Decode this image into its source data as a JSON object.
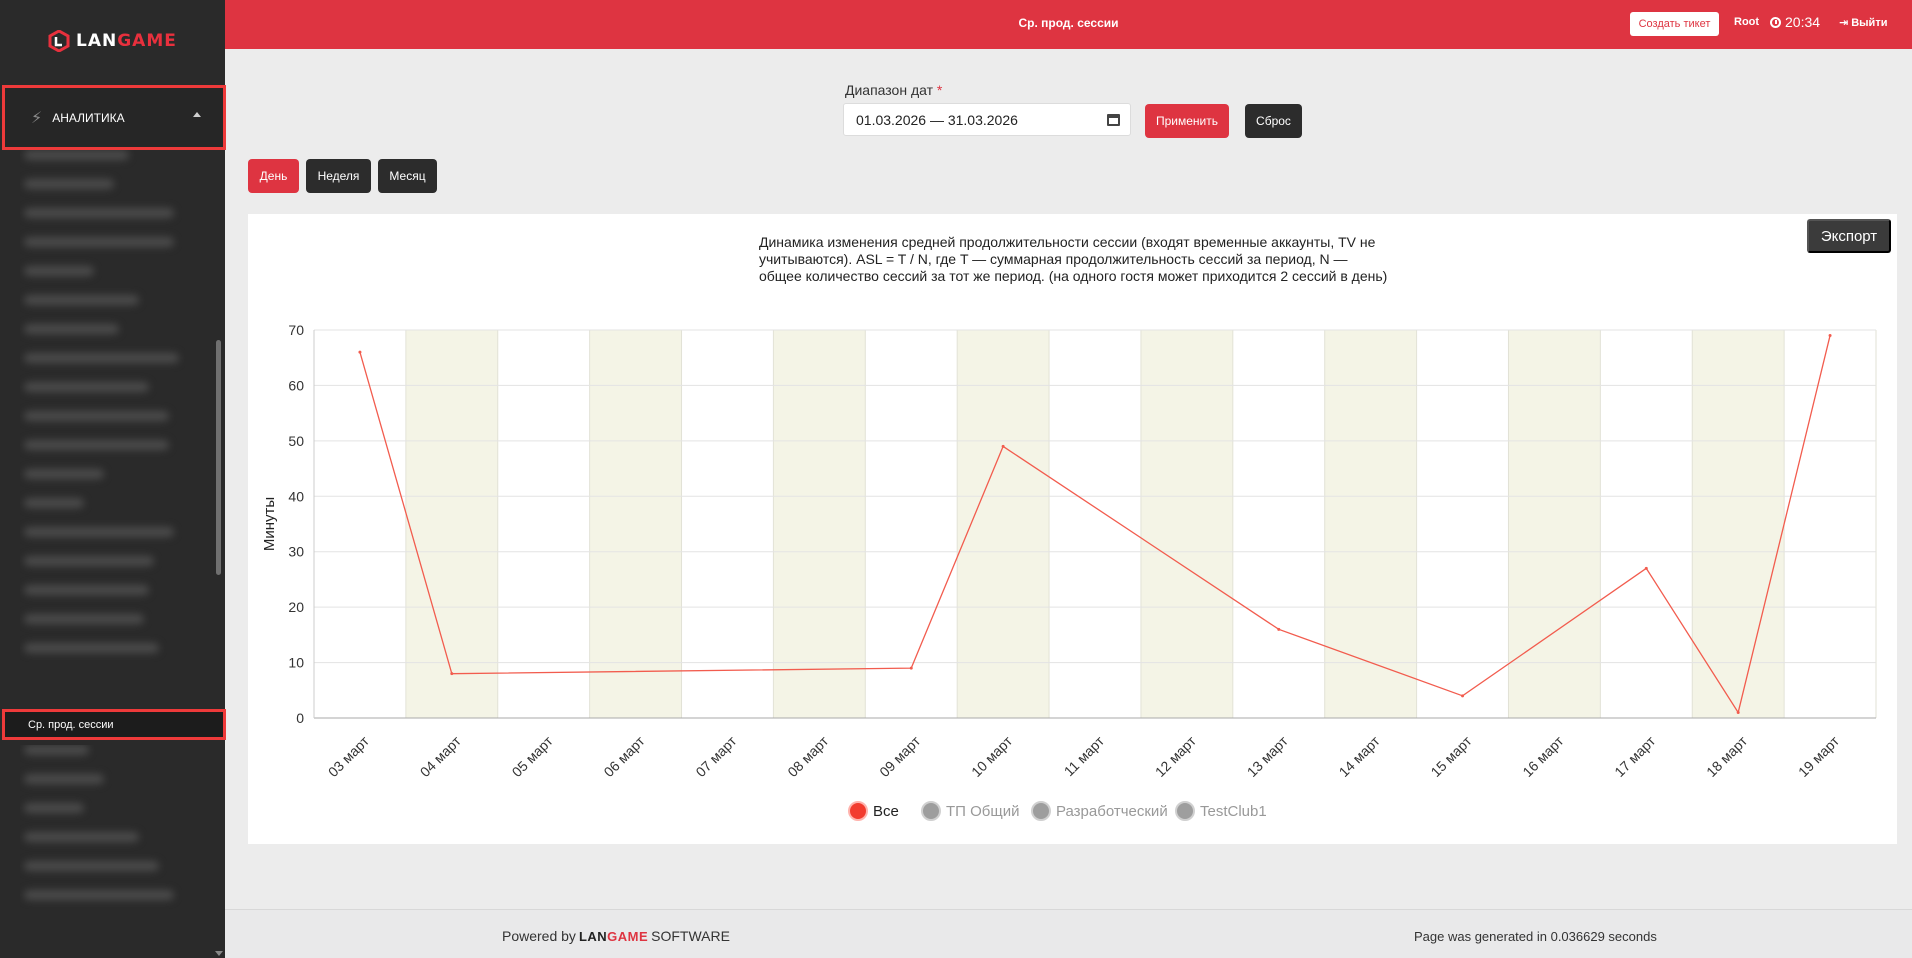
{
  "sidebar": {
    "logo": {
      "lan": "LAN",
      "game": "GAME"
    },
    "section_label": "АНАЛИТИКА",
    "active_item": "Ср. прод. сессии"
  },
  "header": {
    "title": "Ср. прод. сессии",
    "ticket_button": "Создать тикет",
    "user": "Root",
    "time": "20:34",
    "logout": "Выйти"
  },
  "filters": {
    "date_label": "Диапазон дат",
    "required_mark": "*",
    "date_range": "01.03.2026 — 31.03.2026",
    "apply": "Применить",
    "reset": "Сброс"
  },
  "period_tabs": [
    {
      "label": "День",
      "active": true
    },
    {
      "label": "Неделя",
      "active": false
    },
    {
      "label": "Месяц",
      "active": false
    }
  ],
  "chart": {
    "export_label": "Экспорт",
    "description": "Динамика изменения средней продолжительности сессии (входят временные аккаунты, TV не учитываются). ASL = T / N, где T — суммарная продолжительность сессий за период, N — общее количество сессий за тот же период. (на одного гостя может приходится 2 сессий в день)"
  },
  "colors": {
    "accent": "#de3441",
    "line": "#f25c4e",
    "band": "#f4f4e6",
    "legend_inactive": "#9e9e9e"
  },
  "chart_data": {
    "type": "line",
    "ylabel": "Минуты",
    "ylim": [
      0,
      70
    ],
    "yticks": [
      0,
      10,
      20,
      30,
      40,
      50,
      60,
      70
    ],
    "categories": [
      "03 март",
      "04 март",
      "05 март",
      "06 март",
      "07 март",
      "08 март",
      "09 март",
      "10 март",
      "11 март",
      "12 март",
      "13 март",
      "14 март",
      "15 март",
      "16 март",
      "17 март",
      "18 март",
      "19 март"
    ],
    "series": [
      {
        "name": "Все",
        "active": true,
        "points": [
          {
            "x": "03 март",
            "y": 66
          },
          {
            "x": "04 март",
            "y": 8
          },
          {
            "x": "09 март",
            "y": 9
          },
          {
            "x": "10 март",
            "y": 49
          },
          {
            "x": "13 март",
            "y": 16
          },
          {
            "x": "15 март",
            "y": 4
          },
          {
            "x": "17 март",
            "y": 27
          },
          {
            "x": "18 март",
            "y": 1
          },
          {
            "x": "19 март",
            "y": 69
          }
        ]
      },
      {
        "name": "ТП Общий",
        "active": false,
        "points": []
      },
      {
        "name": "Разработческий",
        "active": false,
        "points": []
      },
      {
        "name": "TestClub1",
        "active": false,
        "points": []
      }
    ],
    "legend_position": "bottom-center",
    "grid": true
  },
  "footer": {
    "powered_prefix": "Powered by",
    "brand_lan": "LAN",
    "brand_game": "GAME",
    "powered_suffix": "SOFTWARE",
    "generated": "Page was generated in 0.036629 seconds"
  }
}
